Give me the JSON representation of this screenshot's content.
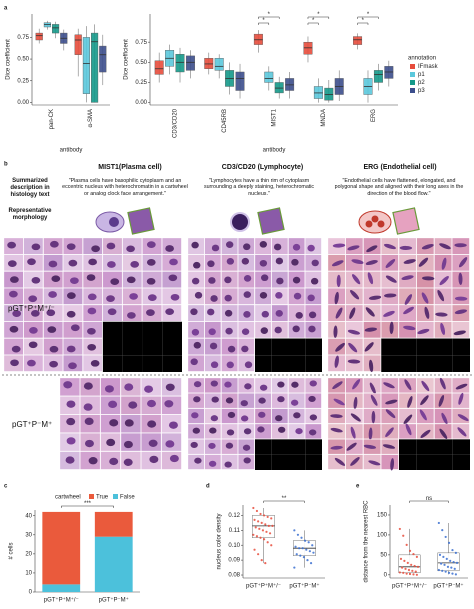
{
  "panels": [
    "a",
    "b",
    "c",
    "d",
    "e"
  ],
  "panel_b": {
    "columns": [
      {
        "title": "MIST1(Plasma cell)",
        "description": "\"Plasma cells have basophilic cytoplasm and an eccentric nucleus with heterochromatin in a cartwheel or analog clock face arrangement.\""
      },
      {
        "title": "CD3/CD20 (Lymphocyte)",
        "description": "\"Lymphocytes have a thin rim of cytoplasm surrounding a deeply staining, heterochromatic nucleus.\""
      },
      {
        "title": "ERG (Endothelial cell)",
        "description": "\"Endothelial cells have flattened, elongated, and polygonal shape and aligned with their long axes in the direction of the blood flow.\""
      }
    ],
    "row_labels": [
      "Summarized description in histology text",
      "Representative morphology"
    ],
    "groups": [
      "pGT⁺P⁺M⁺/⁻",
      "pGT⁺P⁻M⁺"
    ]
  },
  "chart_data": [
    {
      "type": "box",
      "ylabel": "Dice coefficient",
      "xlabel": "antibody",
      "categories": [
        "pan-CK",
        "α-SMA"
      ],
      "ylim": [
        -0.03,
        1.02
      ],
      "yticks": [
        {
          "value": 0,
          "label": "0.00"
        },
        {
          "value": 0.25,
          "label": "0.25"
        },
        {
          "value": 0.5,
          "label": "0.50"
        },
        {
          "value": 0.75,
          "label": "0.75"
        }
      ],
      "series": [
        {
          "color": "#e74c3c",
          "values": [
            {
              "min": 0.68,
              "q1": 0.72,
              "median": 0.77,
              "q3": 0.8,
              "max": 0.85
            },
            {
              "min": 0.3,
              "q1": 0.55,
              "median": 0.72,
              "q3": 0.78,
              "max": 0.85
            }
          ]
        },
        {
          "color": "#5bc8dc",
          "values": [
            {
              "min": 0.84,
              "q1": 0.87,
              "median": 0.9,
              "q3": 0.92,
              "max": 0.94
            },
            {
              "min": 0.0,
              "q1": 0.1,
              "median": 0.45,
              "q3": 0.75,
              "max": 0.88
            }
          ]
        },
        {
          "color": "#14998a",
          "values": [
            {
              "min": 0.74,
              "q1": 0.8,
              "median": 0.86,
              "q3": 0.9,
              "max": 0.93
            },
            {
              "min": 0.0,
              "q1": 0.0,
              "median": 0.7,
              "q3": 0.8,
              "max": 0.9
            }
          ]
        },
        {
          "color": "#3c4e8c",
          "values": [
            {
              "min": 0.6,
              "q1": 0.68,
              "median": 0.74,
              "q3": 0.8,
              "max": 0.84
            },
            {
              "min": 0.2,
              "q1": 0.35,
              "median": 0.55,
              "q3": 0.65,
              "max": 0.78
            }
          ]
        }
      ]
    },
    {
      "type": "box",
      "ylabel": "Dice coefficient",
      "xlabel": "antibody",
      "legend_title": "annotation",
      "categories": [
        "CD3/CD20",
        "CD45RB",
        "MIST1",
        "MNDA",
        "ERG"
      ],
      "ylim": [
        -0.03,
        1.1
      ],
      "yticks": [
        {
          "value": 0,
          "label": "0.00"
        },
        {
          "value": 0.25,
          "label": "0.25"
        },
        {
          "value": 0.5,
          "label": "0.50"
        },
        {
          "value": 0.75,
          "label": "0.75"
        }
      ],
      "annotations": [
        "*",
        "*",
        "*",
        "*",
        "*",
        "*"
      ],
      "series": [
        {
          "name": "IFmask",
          "color": "#e74c3c",
          "values": [
            {
              "min": 0.25,
              "q1": 0.35,
              "median": 0.42,
              "q3": 0.52,
              "max": 0.62
            },
            {
              "min": 0.35,
              "q1": 0.42,
              "median": 0.48,
              "q3": 0.55,
              "max": 0.62
            },
            {
              "min": 0.62,
              "q1": 0.72,
              "median": 0.78,
              "q3": 0.85,
              "max": 0.9
            },
            {
              "min": 0.5,
              "q1": 0.6,
              "median": 0.68,
              "q3": 0.75,
              "max": 0.82
            },
            {
              "min": 0.66,
              "q1": 0.72,
              "median": 0.78,
              "q3": 0.82,
              "max": 0.86
            }
          ]
        },
        {
          "name": "p1",
          "color": "#5bc8dc",
          "values": [
            {
              "min": 0.35,
              "q1": 0.45,
              "median": 0.55,
              "q3": 0.65,
              "max": 0.72
            },
            {
              "min": 0.3,
              "q1": 0.4,
              "median": 0.45,
              "q3": 0.55,
              "max": 0.6
            },
            {
              "min": 0.15,
              "q1": 0.25,
              "median": 0.3,
              "q3": 0.38,
              "max": 0.45
            },
            {
              "min": 0.0,
              "q1": 0.05,
              "median": 0.12,
              "q3": 0.2,
              "max": 0.3
            },
            {
              "min": 0.0,
              "q1": 0.1,
              "median": 0.2,
              "q3": 0.3,
              "max": 0.4
            }
          ]
        },
        {
          "name": "p2",
          "color": "#14998a",
          "values": [
            {
              "min": 0.25,
              "q1": 0.38,
              "median": 0.5,
              "q3": 0.6,
              "max": 0.68
            },
            {
              "min": 0.1,
              "q1": 0.2,
              "median": 0.3,
              "q3": 0.4,
              "max": 0.5
            },
            {
              "min": 0.05,
              "q1": 0.12,
              "median": 0.18,
              "q3": 0.25,
              "max": 0.32
            },
            {
              "min": 0.0,
              "q1": 0.03,
              "median": 0.1,
              "q3": 0.18,
              "max": 0.28
            },
            {
              "min": 0.15,
              "q1": 0.25,
              "median": 0.35,
              "q3": 0.4,
              "max": 0.48
            }
          ]
        },
        {
          "name": "p3",
          "color": "#3c4e8c",
          "values": [
            {
              "min": 0.3,
              "q1": 0.4,
              "median": 0.5,
              "q3": 0.58,
              "max": 0.65
            },
            {
              "min": 0.05,
              "q1": 0.15,
              "median": 0.3,
              "q3": 0.38,
              "max": 0.48
            },
            {
              "min": 0.05,
              "q1": 0.15,
              "median": 0.22,
              "q3": 0.3,
              "max": 0.38
            },
            {
              "min": 0.02,
              "q1": 0.1,
              "median": 0.2,
              "q3": 0.3,
              "max": 0.4
            },
            {
              "min": 0.2,
              "q1": 0.3,
              "median": 0.38,
              "q3": 0.45,
              "max": 0.52
            }
          ]
        }
      ]
    },
    {
      "type": "stacked_bar",
      "ylabel": "# cells",
      "legend_title": "cartwheel",
      "categories": [
        "pGT⁺P⁺M⁺/⁻",
        "pGT⁺P⁻M⁺"
      ],
      "ylim": [
        0,
        43
      ],
      "yticks": [
        0,
        10,
        20,
        30,
        40
      ],
      "annotations": [
        "***"
      ],
      "series": [
        {
          "name": "True",
          "color": "#ea5a3c",
          "values": [
            38,
            13
          ]
        },
        {
          "name": "False",
          "color": "#4cc1db",
          "values": [
            4,
            29
          ]
        }
      ]
    },
    {
      "type": "box",
      "ylabel": "nucleus color density",
      "categories": [
        "pGT⁺P⁺M⁺/⁻",
        "pGT⁺P⁻M⁺"
      ],
      "ylim": [
        0.078,
        0.127
      ],
      "yticks": [
        0.08,
        0.09,
        {
          "value": 0.1,
          "label": "0.10"
        },
        0.11,
        0.12
      ],
      "annotations": [
        "**"
      ],
      "colors": [
        "#e74c3c",
        "#3a6fd0"
      ],
      "values": [
        {
          "min": 0.088,
          "q1": 0.105,
          "median": 0.113,
          "q3": 0.12,
          "max": 0.125
        },
        {
          "min": 0.085,
          "q1": 0.093,
          "median": 0.098,
          "q3": 0.103,
          "max": 0.11
        }
      ],
      "points": [
        [
          0.125,
          0.123,
          0.121,
          0.12,
          0.119,
          0.118,
          0.117,
          0.116,
          0.115,
          0.114,
          0.113,
          0.113,
          0.112,
          0.111,
          0.11,
          0.109,
          0.108,
          0.107,
          0.106,
          0.105,
          0.104,
          0.102,
          0.1,
          0.097,
          0.094,
          0.09,
          0.088
        ],
        [
          0.11,
          0.107,
          0.105,
          0.103,
          0.102,
          0.1,
          0.099,
          0.098,
          0.098,
          0.097,
          0.096,
          0.095,
          0.094,
          0.093,
          0.092,
          0.09,
          0.088,
          0.085
        ]
      ]
    },
    {
      "type": "box",
      "ylabel": "distance from the nearest RBC",
      "categories": [
        "pGT⁺P⁺M⁺/⁻",
        "pGT⁺P⁻M⁺"
      ],
      "ylim": [
        -8,
        175
      ],
      "yticks": [
        0,
        50,
        100,
        150
      ],
      "annotations": [
        "ns"
      ],
      "colors": [
        "#e74c3c",
        "#3a6fd0"
      ],
      "values": [
        {
          "min": 0,
          "q1": 5,
          "median": 20,
          "q3": 50,
          "max": 115
        },
        {
          "min": 1,
          "q1": 10,
          "median": 30,
          "q3": 55,
          "max": 130
        }
      ],
      "points": [
        [
          115,
          98,
          75,
          60,
          52,
          45,
          40,
          35,
          30,
          25,
          22,
          20,
          18,
          15,
          12,
          10,
          8,
          6,
          5,
          3,
          2,
          1,
          0
        ],
        [
          130,
          112,
          95,
          80,
          62,
          55,
          50,
          45,
          40,
          35,
          32,
          30,
          28,
          25,
          20,
          18,
          15,
          12,
          10,
          8,
          5,
          3,
          1
        ]
      ]
    }
  ]
}
